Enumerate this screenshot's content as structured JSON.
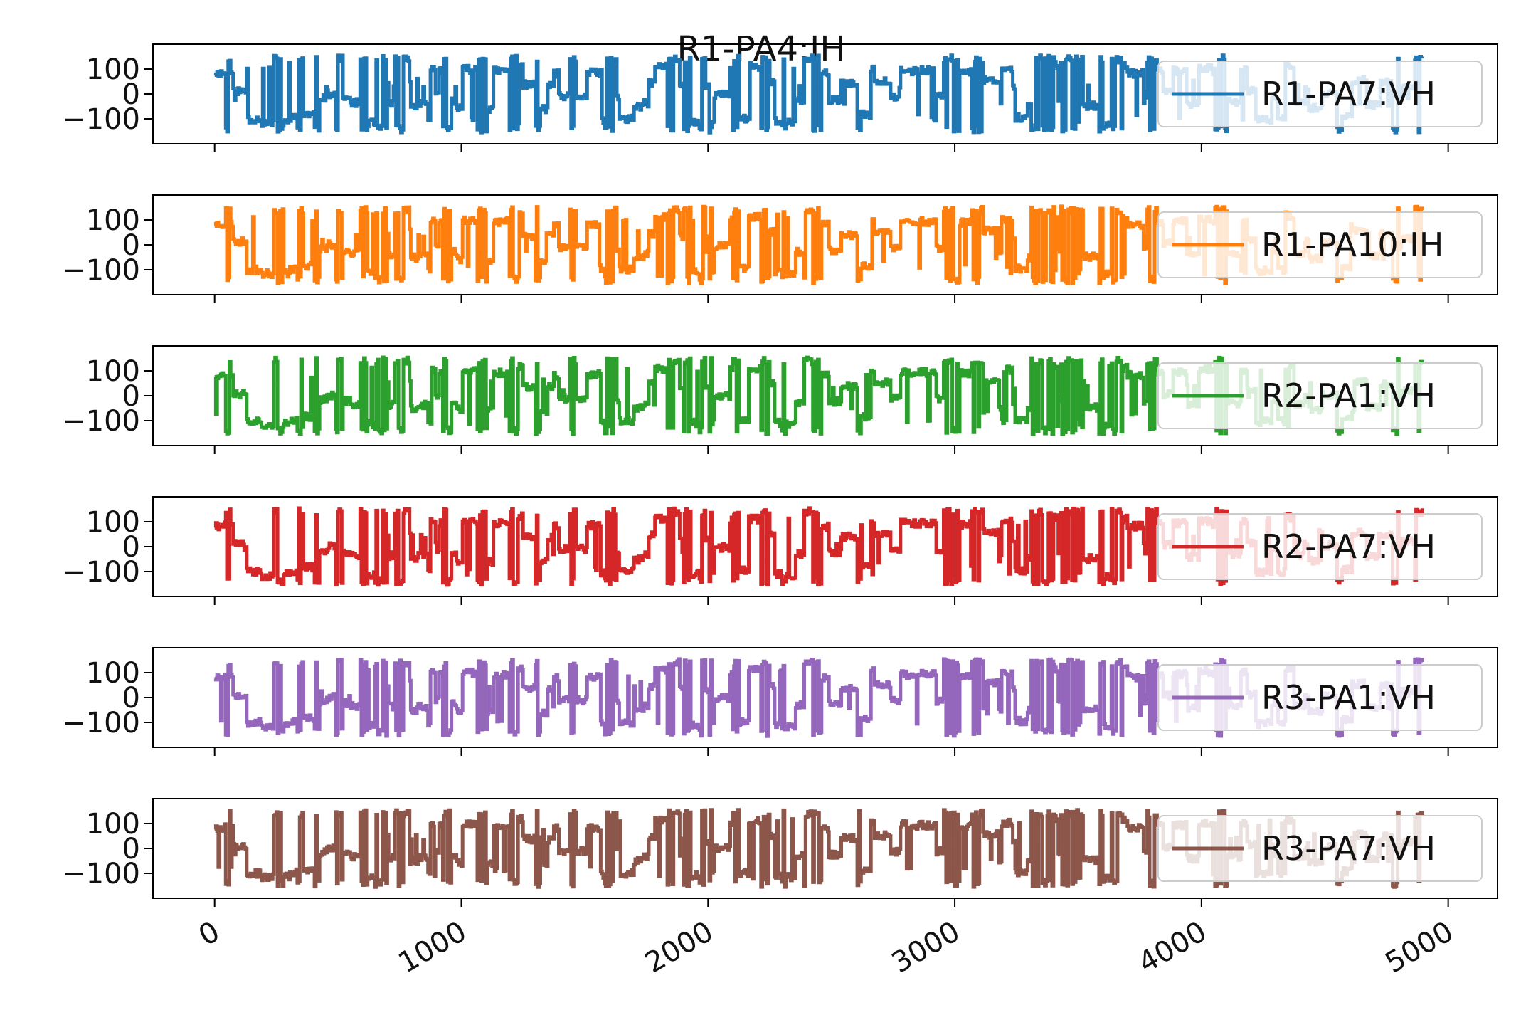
{
  "chart_data": {
    "type": "line",
    "title": "R1-PA4:IH",
    "xlim": [
      -250,
      5200
    ],
    "ylim": [
      -200,
      200
    ],
    "xticks": [
      {
        "value": 0,
        "label": "0"
      },
      {
        "value": 1000,
        "label": "1000"
      },
      {
        "value": 2000,
        "label": "2000"
      },
      {
        "value": 3000,
        "label": "3000"
      },
      {
        "value": 4000,
        "label": "4000"
      },
      {
        "value": 5000,
        "label": "5000"
      }
    ],
    "yticks": [
      {
        "value": 100,
        "label": "100"
      },
      {
        "value": 0,
        "label": "0"
      },
      {
        "value": -100,
        "label": "−100"
      }
    ],
    "legend_placement": "right",
    "grid": false,
    "series": [
      {
        "name": "R1-PA7:VH",
        "color": "#1f77b4",
        "seed": 11
      },
      {
        "name": "R1-PA10:IH",
        "color": "#ff7f0e",
        "seed": 23
      },
      {
        "name": "R2-PA1:VH",
        "color": "#2ca02c",
        "seed": 37
      },
      {
        "name": "R2-PA7:VH",
        "color": "#d62728",
        "seed": 41
      },
      {
        "name": "R3-PA1:VH",
        "color": "#9467bd",
        "seed": 53
      },
      {
        "name": "R3-PA7:VH",
        "color": "#8c564b",
        "seed": 67
      }
    ]
  }
}
